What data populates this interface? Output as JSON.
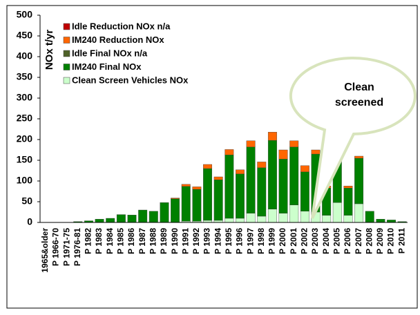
{
  "chart_data": {
    "type": "stacked_bar",
    "y_label": "NOx t/yr",
    "annotation": [
      "Clean",
      "screened"
    ],
    "categories": [
      "1965&older",
      "P 1966-70",
      "P 1971-75",
      "P 1976-81",
      "P 1982",
      "P 1983",
      "P 1984",
      "P 1985",
      "P 1986",
      "P 1987",
      "P 1988",
      "P 1989",
      "P 1990",
      "P 1991",
      "P 1992",
      "P 1993",
      "P 1994",
      "P 1995",
      "P 1996",
      "P 1997",
      "P 1998",
      "P 1999",
      "P 2000",
      "P 2001",
      "P 2002",
      "P 2003",
      "P 2004",
      "P 2005",
      "P 2006",
      "P 2007",
      "P 2008",
      "P 2009",
      "P 2010",
      "P 2011"
    ],
    "series": [
      {
        "name": "Idle Reduction NOx n/a",
        "color": "#c00000",
        "values": [
          0,
          0,
          0,
          0,
          0,
          0,
          0,
          0,
          0,
          0,
          0,
          0,
          0,
          0,
          0,
          0,
          0,
          0,
          0,
          0,
          0,
          0,
          0,
          0,
          0,
          0,
          0,
          0,
          0,
          0,
          0,
          0,
          0,
          0
        ]
      },
      {
        "name": "IM240 Reduction NOx",
        "color": "#ff6600",
        "values": [
          0,
          0,
          0,
          0,
          0,
          0,
          0,
          0,
          0,
          0,
          0,
          0,
          2,
          5,
          6,
          10,
          7,
          13,
          10,
          15,
          14,
          20,
          22,
          15,
          15,
          10,
          5,
          7,
          5,
          5,
          0,
          0,
          0,
          0
        ]
      },
      {
        "name": "Idle Final NOx n/a",
        "color": "#4f6228",
        "values": [
          0,
          0,
          0,
          0,
          0,
          0,
          0,
          0,
          0,
          0,
          0,
          0,
          0,
          0,
          0,
          0,
          0,
          0,
          0,
          0,
          0,
          0,
          0,
          0,
          0,
          0,
          0,
          0,
          0,
          0,
          0,
          0,
          0,
          0
        ]
      },
      {
        "name": "IM240 Final NOx",
        "color": "#008000",
        "values": [
          0,
          0,
          0,
          2,
          4,
          8,
          10,
          19,
          18,
          30,
          27,
          48,
          57,
          84,
          77,
          125,
          98,
          153,
          107,
          160,
          117,
          166,
          131,
          140,
          95,
          140,
          66,
          112,
          66,
          110,
          27,
          8,
          6,
          2
        ]
      },
      {
        "name": "Clean Screen Vehicles NOx",
        "color": "#ccffcc",
        "values": [
          0,
          0,
          0,
          0,
          0,
          0,
          0,
          0,
          0,
          0,
          0,
          0,
          0,
          3,
          3,
          5,
          5,
          10,
          10,
          22,
          15,
          32,
          22,
          42,
          27,
          25,
          17,
          48,
          17,
          45,
          0,
          0,
          0,
          0
        ]
      }
    ],
    "ylim": [
      0,
      500
    ],
    "yticks": [
      0,
      50,
      100,
      150,
      200,
      250,
      300,
      350,
      400,
      450,
      500
    ]
  }
}
